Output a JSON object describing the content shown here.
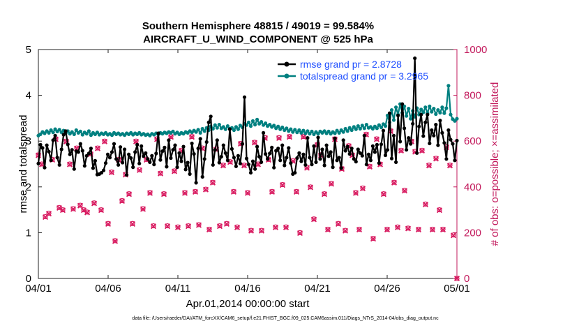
{
  "chart_data": {
    "type": "line",
    "title_line1": "Southern Hemisphere 48815 / 49019 = 99.584%",
    "title_line2": "AIRCRAFT_U_WIND_COMPONENT @ 525 hPa",
    "xlabel": "Apr.01,2014 00:00:00 start",
    "ylabel_left": "rmse and totalspread",
    "ylabel_right": "# of obs: o=possible; ×=assimilated",
    "xlim": [
      0,
      30
    ],
    "ylim_left": [
      0,
      5
    ],
    "ylim_right": [
      0,
      1000
    ],
    "x_ticks": [
      0,
      5,
      10,
      15,
      20,
      25,
      30
    ],
    "x_tick_labels": [
      "04/01",
      "04/06",
      "04/11",
      "04/16",
      "04/21",
      "04/26",
      "05/01"
    ],
    "y_left_ticks": [
      "0",
      "1",
      "2",
      "3",
      "4",
      "5"
    ],
    "y_right_ticks": [
      "0",
      "200",
      "400",
      "600",
      "800",
      "1000"
    ],
    "footnote": "data file: /Users/raeder/DAI/ATM_forcXX/CAM6_setup/f.e21.FHIST_BGC.f09_025.CAM6assim.011/Diags_NTrS_2014-04/obs_diag_output.nc",
    "colors": {
      "rmse": "#000000",
      "spread": "#008080",
      "obs": "#d81b60",
      "legend_text": "#1f4fff",
      "right_axis": "#c2185b"
    },
    "series": [
      {
        "name": "rmse grand pr = 2.8728",
        "values": [
          2.51,
          2.92,
          2.85,
          2.42,
          2.91,
          2.77,
          2.58,
          3.02,
          3.12,
          2.64,
          2.48,
          2.82,
          3.14,
          3.22,
          2.93,
          2.71,
          2.81,
          2.39,
          2.78,
          2.76,
          2.94,
          2.79,
          2.46,
          2.68,
          2.73,
          2.84,
          2.41,
          2.57,
          2.27,
          2.28,
          2.31,
          2.36,
          2.52,
          2.71,
          2.64,
          2.76,
          2.94,
          2.61,
          2.48,
          2.87,
          2.53,
          2.82,
          2.26,
          2.71,
          2.63,
          2.43,
          2.76,
          2.92,
          2.51,
          2.89,
          2.67,
          2.74,
          2.61,
          2.54,
          2.68,
          2.49,
          2.73,
          3.17,
          2.59,
          2.78,
          2.86,
          2.44,
          3.02,
          2.63,
          2.81,
          2.91,
          2.43,
          2.74,
          2.56,
          2.88,
          2.38,
          2.53,
          2.28,
          2.95,
          2.72,
          2.09,
          2.84,
          3.05,
          2.22,
          2.61,
          2.98,
          3.41,
          3.54,
          2.48,
          2.81,
          3.02,
          2.53,
          2.66,
          2.91,
          2.74,
          2.58,
          3.26,
          2.83,
          2.64,
          2.45,
          2.68,
          2.51,
          2.94,
          3.96,
          2.62,
          2.49,
          2.31,
          2.56,
          2.39,
          2.88,
          2.66,
          2.54,
          3.18,
          2.72,
          2.61,
          2.73,
          2.86,
          2.42,
          2.79,
          2.84,
          2.58,
          2.91,
          2.47,
          2.64,
          2.85,
          2.52,
          2.28,
          2.31,
          2.63,
          2.74,
          2.56,
          2.71,
          2.48,
          3.07,
          2.64,
          2.49,
          2.89,
          2.54,
          3.08,
          2.61,
          2.82,
          2.47,
          2.91,
          2.67,
          2.76,
          2.43,
          3.06,
          2.58,
          2.64,
          2.41,
          3.02,
          2.79,
          2.88,
          2.72,
          2.84,
          2.61,
          2.55,
          2.82,
          2.74,
          2.68,
          3.12,
          2.49,
          2.71,
          2.58,
          2.89,
          2.76,
          2.92,
          2.52,
          2.93,
          3.23,
          2.69,
          2.81,
          3.61,
          2.62,
          3.12,
          2.54,
          3.56,
          2.99,
          3.81,
          3.28,
          2.81,
          3.07,
          2.94,
          3.38,
          4.81,
          2.74,
          3.32,
          3.58,
          3.11,
          3.41,
          3.58,
          2.95,
          3.24,
          3.12,
          3.36,
          2.91,
          3.45,
          3.18,
          2.96,
          2.61,
          3.24,
          3.03,
          2.94,
          2.58,
          3.01
        ]
      },
      {
        "name": "totalspread grand pr = 3.2965",
        "values": [
          3.12,
          3.15,
          3.2,
          3.17,
          3.22,
          3.18,
          3.24,
          3.19,
          3.26,
          3.21,
          3.25,
          3.19,
          3.23,
          3.17,
          3.22,
          3.16,
          3.2,
          3.15,
          3.24,
          3.18,
          3.21,
          3.14,
          3.19,
          3.16,
          3.22,
          3.13,
          3.18,
          3.15,
          3.19,
          3.14,
          3.17,
          3.15,
          3.18,
          3.14,
          3.16,
          3.13,
          3.18,
          3.15,
          3.17,
          3.14,
          3.16,
          3.13,
          3.17,
          3.15,
          3.18,
          3.14,
          3.17,
          3.15,
          3.18,
          3.14,
          3.16,
          3.13,
          3.15,
          3.12,
          3.16,
          3.14,
          3.17,
          3.15,
          3.18,
          3.16,
          3.19,
          3.17,
          3.2,
          3.18,
          3.21,
          3.16,
          3.19,
          3.15,
          3.18,
          3.16,
          3.2,
          3.18,
          3.22,
          3.19,
          3.23,
          3.2,
          3.25,
          3.18,
          3.27,
          3.22,
          3.29,
          3.24,
          3.32,
          3.27,
          3.35,
          3.29,
          3.36,
          3.28,
          3.31,
          3.26,
          3.33,
          3.27,
          3.29,
          3.24,
          3.31,
          3.26,
          3.34,
          3.3,
          3.38,
          3.35,
          3.41,
          3.33,
          3.44,
          3.36,
          3.47,
          3.38,
          3.42,
          3.35,
          3.39,
          3.33,
          3.36,
          3.31,
          3.34,
          3.28,
          3.32,
          3.26,
          3.3,
          3.24,
          3.28,
          3.22,
          3.26,
          3.2,
          3.25,
          3.19,
          3.24,
          3.18,
          3.23,
          3.17,
          3.22,
          3.16,
          3.21,
          3.15,
          3.2,
          3.16,
          3.21,
          3.18,
          3.22,
          3.17,
          3.21,
          3.16,
          3.2,
          3.17,
          3.23,
          3.18,
          3.24,
          3.2,
          3.27,
          3.22,
          3.29,
          3.24,
          3.31,
          3.26,
          3.33,
          3.27,
          3.34,
          3.28,
          3.36,
          3.29,
          3.31,
          3.27,
          3.32,
          3.28,
          3.35,
          3.3,
          3.37,
          3.33,
          3.56,
          3.41,
          3.68,
          3.46,
          3.74,
          3.58,
          3.81,
          3.62,
          3.76,
          3.55,
          3.71,
          3.49,
          3.66,
          3.53,
          3.72,
          3.58,
          3.69,
          3.63,
          3.74,
          3.61,
          3.76,
          3.64,
          3.71,
          3.59,
          3.68,
          3.62,
          3.74,
          3.61,
          3.72,
          4.21,
          3.58,
          3.48,
          3.44,
          3.49
        ]
      }
    ],
    "obs_possible": {
      "x": [
        0.0,
        0.25,
        0.5,
        0.75,
        1.0,
        1.25,
        1.5,
        1.75,
        2.0,
        2.25,
        2.5,
        2.75,
        3.0,
        3.25,
        3.5,
        3.75,
        4.0,
        4.25,
        4.5,
        4.75,
        5.0,
        5.25,
        5.5,
        5.75,
        6.0,
        6.25,
        6.5,
        6.75,
        7.0,
        7.25,
        7.5,
        7.75,
        8.0,
        8.25,
        8.5,
        8.75,
        9.0,
        9.25,
        9.5,
        9.75,
        10.0,
        10.25,
        10.5,
        10.75,
        11.0,
        11.25,
        11.5,
        11.75,
        12.0,
        12.25,
        12.5,
        12.75,
        13.0,
        13.25,
        13.5,
        13.75,
        14.0,
        14.25,
        14.5,
        14.75,
        15.0,
        15.25,
        15.5,
        15.75,
        16.0,
        16.25,
        16.5,
        16.75,
        17.0,
        17.25,
        17.5,
        17.75,
        18.0,
        18.25,
        18.5,
        18.75,
        19.0,
        19.25,
        19.5,
        19.75,
        20.0,
        20.25,
        20.5,
        20.75,
        21.0,
        21.25,
        21.5,
        21.75,
        22.0,
        22.25,
        22.5,
        22.75,
        23.0,
        23.25,
        23.5,
        23.75,
        24.0,
        24.25,
        24.5,
        24.75,
        25.0,
        25.25,
        25.5,
        25.75,
        26.0,
        26.25,
        26.5,
        26.75,
        27.0,
        27.25,
        27.5,
        27.75,
        28.0,
        28.25,
        28.5,
        28.75,
        29.0,
        29.25,
        29.5,
        29.75,
        30.0
      ],
      "y": [
        540,
        500,
        270,
        285,
        520,
        610,
        310,
        300,
        600,
        500,
        305,
        570,
        320,
        300,
        290,
        545,
        330,
        570,
        300,
        600,
        240,
        465,
        165,
        520,
        340,
        455,
        370,
        240,
        600,
        475,
        305,
        520,
        375,
        230,
        610,
        460,
        370,
        230,
        620,
        470,
        225,
        560,
        375,
        230,
        620,
        380,
        235,
        570,
        390,
        215,
        420,
        565,
        230,
        495,
        240,
        510,
        380,
        225,
        590,
        495,
        375,
        210,
        595,
        500,
        210,
        615,
        520,
        380,
        225,
        615,
        410,
        225,
        620,
        515,
        380,
        200,
        620,
        485,
        400,
        260,
        585,
        540,
        370,
        215,
        415,
        610,
        240,
        480,
        210,
        580,
        540,
        375,
        215,
        395,
        630,
        490,
        175,
        610,
        500,
        370,
        215,
        645,
        420,
        225,
        560,
        385,
        220,
        600,
        555,
        215,
        560,
        325,
        495,
        215,
        525,
        300,
        215,
        575,
        495,
        190,
        0
      ]
    },
    "obs_assimilated": {
      "x": [
        0.0,
        0.25,
        0.5,
        0.75,
        1.0,
        1.25,
        1.5,
        1.75,
        2.0,
        2.25,
        2.5,
        2.75,
        3.0,
        3.25,
        3.5,
        3.75,
        4.0,
        4.25,
        4.5,
        4.75,
        5.0,
        5.25,
        5.5,
        5.75,
        6.0,
        6.25,
        6.5,
        6.75,
        7.0,
        7.25,
        7.5,
        7.75,
        8.0,
        8.25,
        8.5,
        8.75,
        9.0,
        9.25,
        9.5,
        9.75,
        10.0,
        10.25,
        10.5,
        10.75,
        11.0,
        11.25,
        11.5,
        11.75,
        12.0,
        12.25,
        12.5,
        12.75,
        13.0,
        13.25,
        13.5,
        13.75,
        14.0,
        14.25,
        14.5,
        14.75,
        15.0,
        15.25,
        15.5,
        15.75,
        16.0,
        16.25,
        16.5,
        16.75,
        17.0,
        17.25,
        17.5,
        17.75,
        18.0,
        18.25,
        18.5,
        18.75,
        19.0,
        19.25,
        19.5,
        19.75,
        20.0,
        20.25,
        20.5,
        20.75,
        21.0,
        21.25,
        21.5,
        21.75,
        22.0,
        22.25,
        22.5,
        22.75,
        23.0,
        23.25,
        23.5,
        23.75,
        24.0,
        24.25,
        24.5,
        24.75,
        25.0,
        25.25,
        25.5,
        25.75,
        26.0,
        26.25,
        26.5,
        26.75,
        27.0,
        27.25,
        27.5,
        27.75,
        28.0,
        28.25,
        28.5,
        28.75,
        29.0,
        29.25,
        29.5,
        29.75,
        30.0
      ],
      "y": [
        538,
        498,
        268,
        283,
        518,
        608,
        308,
        298,
        598,
        498,
        303,
        568,
        318,
        298,
        288,
        543,
        328,
        568,
        298,
        598,
        238,
        463,
        163,
        518,
        338,
        453,
        368,
        238,
        598,
        473,
        303,
        518,
        373,
        228,
        608,
        458,
        368,
        228,
        618,
        468,
        223,
        558,
        373,
        228,
        618,
        378,
        233,
        568,
        388,
        213,
        418,
        563,
        228,
        493,
        238,
        508,
        378,
        223,
        588,
        493,
        373,
        208,
        593,
        498,
        208,
        613,
        518,
        378,
        223,
        613,
        408,
        223,
        618,
        513,
        378,
        198,
        618,
        483,
        398,
        258,
        583,
        538,
        368,
        213,
        413,
        608,
        238,
        478,
        208,
        578,
        538,
        373,
        213,
        393,
        628,
        488,
        173,
        608,
        498,
        368,
        213,
        643,
        418,
        223,
        558,
        383,
        218,
        598,
        553,
        213,
        558,
        323,
        493,
        213,
        523,
        298,
        213,
        573,
        493,
        188,
        0
      ]
    }
  }
}
